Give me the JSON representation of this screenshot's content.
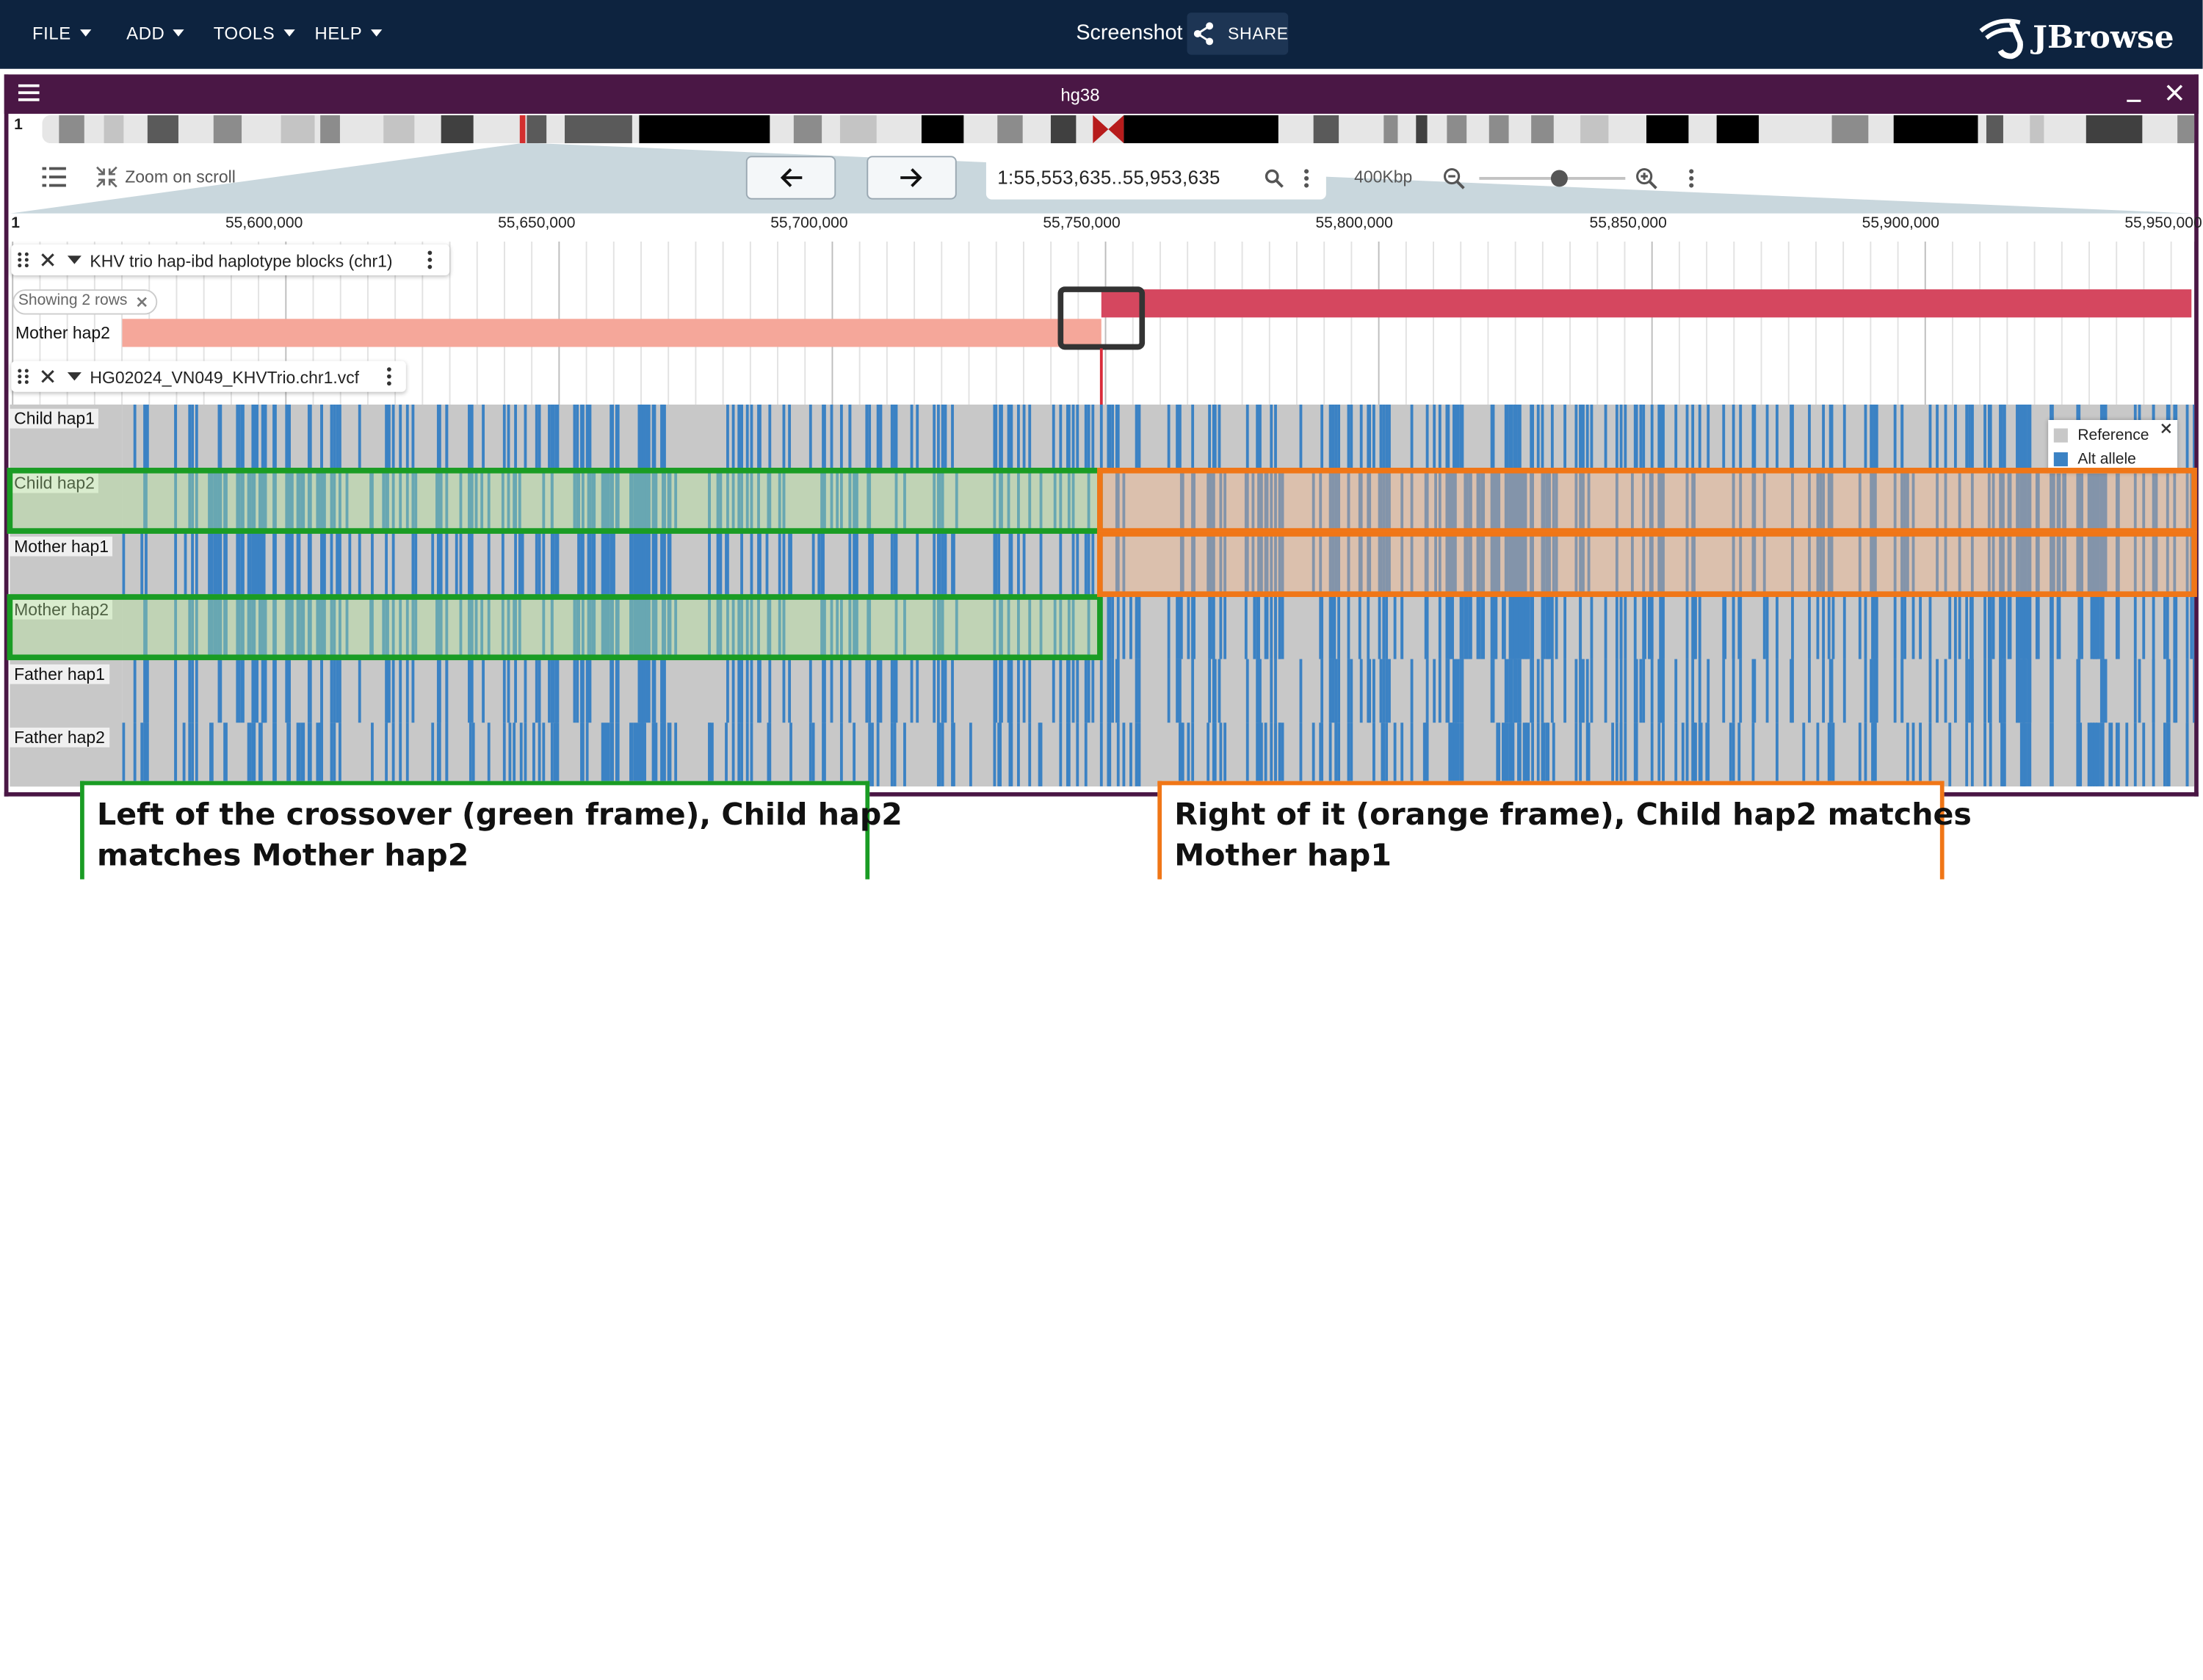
{
  "menu": [
    {
      "label": "FILE"
    },
    {
      "label": "ADD"
    },
    {
      "label": "TOOLS"
    },
    {
      "label": "HELP"
    }
  ],
  "session": {
    "name": "Screenshot",
    "share_label": "SHARE"
  },
  "brand": {
    "name": "JBrowse"
  },
  "view": {
    "assembly": "hg38",
    "chromosome": "1",
    "zoom_on_scroll": "Zoom on scroll",
    "locstring": "1:55,553,635..55,953,635",
    "bp_per_view": "400Kbp",
    "zoom_level": 0.55
  },
  "ruler": {
    "start_label": "1",
    "ticks": [
      "55,600,000",
      "55,650,000",
      "55,700,000",
      "55,750,000",
      "55,800,000",
      "55,850,000",
      "55,900,000",
      "55,950,000"
    ]
  },
  "tracks": {
    "blocks": {
      "title": "KHV trio hap-ibd haplotype blocks (chr1)",
      "chip": "Showing 2 rows",
      "row_label": "Mother hap2"
    },
    "vcf": {
      "title": "HG02024_VN049_KHVTrio.chr1.vcf",
      "rows": [
        "Child hap1",
        "Child hap2",
        "Mother hap1",
        "Mother hap2",
        "Father hap1",
        "Father hap2"
      ],
      "legend": [
        {
          "label": "Reference",
          "color": "#c8c8c8"
        },
        {
          "label": "Alt allele",
          "color": "#3b82c4"
        }
      ]
    }
  },
  "colors": {
    "topbar": "#0d233f",
    "view_header": "#4a1745",
    "green_frame": "#1a9c24",
    "orange_frame": "#f07617",
    "block_dark": "#d5475f",
    "block_light": "#f5a79a"
  },
  "annotations": {
    "left": {
      "line1": "Left of the crossover (green frame), Child hap2",
      "line2": "matches Mother hap2"
    },
    "right": {
      "line1": "Right of it (orange frame), Child hap2 matches",
      "line2": "Mother hap1"
    }
  }
}
